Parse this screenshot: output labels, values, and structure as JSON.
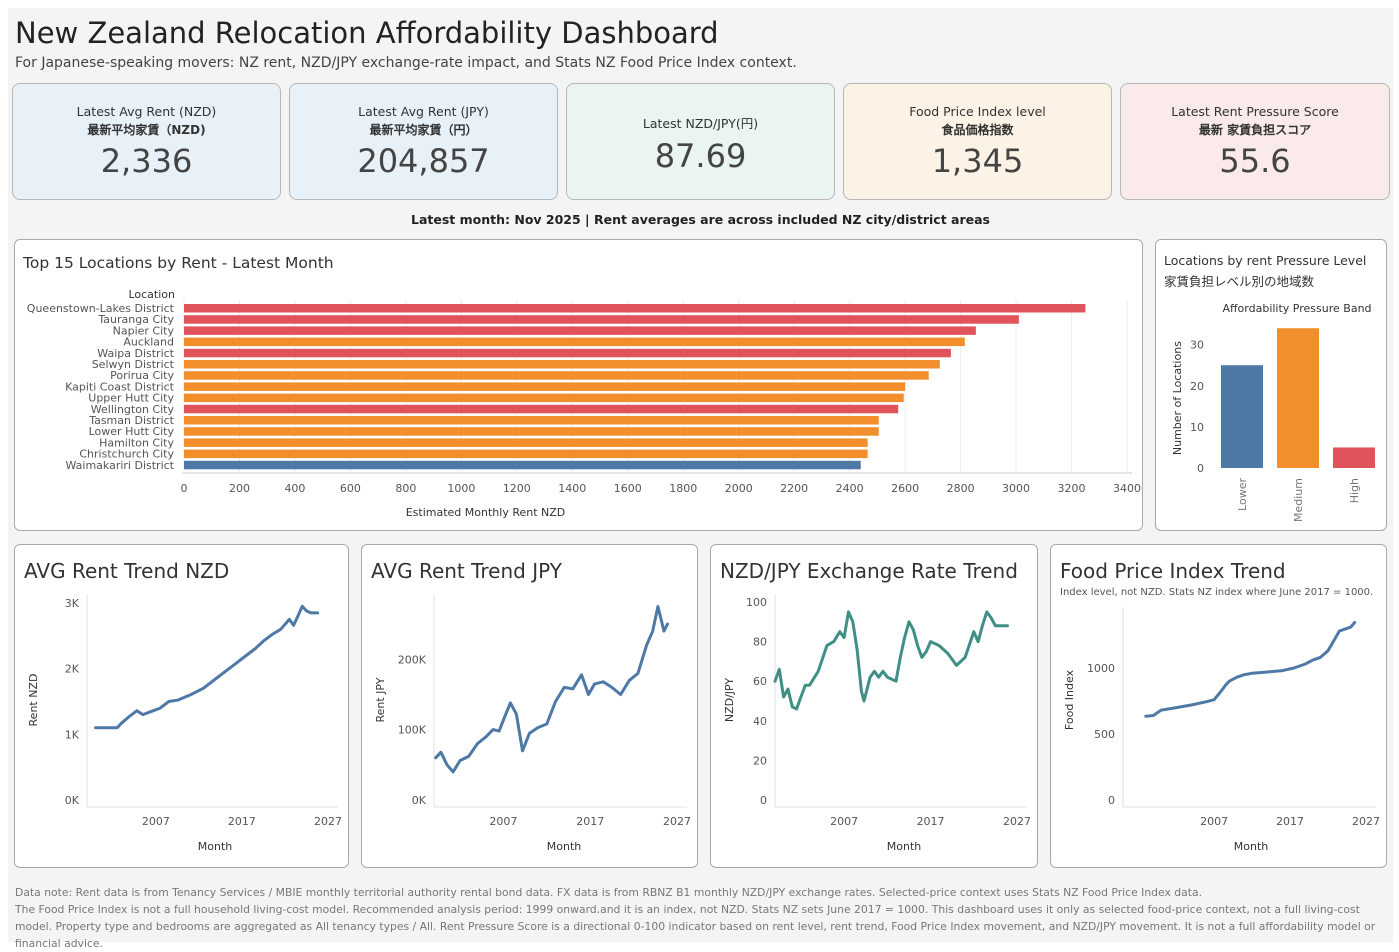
{
  "header": {
    "title": "New Zealand Relocation Affordability Dashboard",
    "subtitle": "For Japanese-speaking movers: NZ rent, NZD/JPY exchange-rate impact, and Stats NZ Food Price Index context."
  },
  "kpis": [
    {
      "label_en": "Latest Avg Rent (NZD)",
      "label_jp": "最新平均家賃（NZD)",
      "value": "2,336",
      "bg": "#e8f0f8"
    },
    {
      "label_en": "Latest Avg Rent (JPY)",
      "label_jp": "最新平均家賃（円）",
      "value": "204,857",
      "bg": "#e8f0f8"
    },
    {
      "label_en": "Latest NZD/JPY(円)",
      "label_jp": "",
      "value": "87.69",
      "bg": "#eaf4f1"
    },
    {
      "label_en": "Food Price Index level",
      "label_jp": "食品価格指数",
      "value": "1,345",
      "bg": "#fdf2e6"
    },
    {
      "label_en": "Latest Rent Pressure Score",
      "label_jp": "最新 家賃負担スコア",
      "value": "55.6",
      "bg": "#fbeaea"
    }
  ],
  "latest_note": "Latest month: Nov 2025 | Rent averages are across included NZ city/district areas",
  "colors": {
    "high": "#e0535a",
    "medium": "#f28e2b",
    "lower": "#4e79a7",
    "teal": "#3f8f87"
  },
  "footnote": {
    "line1": "Data note: Rent data is from Tenancy Services / MBIE monthly territorial authority rental bond data. FX data is from RBNZ B1 monthly NZD/JPY exchange rates. Selected-price context uses Stats NZ Food Price Index data.",
    "line2": "The Food Price Index is not a full household living-cost model. Recommended analysis period: 1999 onward.and it is an index, not NZD. Stats NZ sets June 2017 = 1000. This dashboard uses it only as selected food-price context, not a full living-cost model. Property type and bedrooms are aggregated as All tenancy types / All. Rent Pressure Score is a directional 0-100 indicator based on rent level, rent trend, Food Price Index movement, and NZD/JPY movement. It is not a full affordability model or financial advice."
  },
  "chart_data": [
    {
      "type": "bar",
      "orientation": "horizontal",
      "title": "Top 15 Locations by Rent - Latest Month",
      "ylabel": "Location",
      "xlabel": "Estimated Monthly Rent NZD",
      "xlim": [
        0,
        3400
      ],
      "xticks": [
        0,
        200,
        400,
        600,
        800,
        1000,
        1200,
        1400,
        1600,
        1800,
        2000,
        2200,
        2400,
        2600,
        2800,
        3000,
        3200,
        3400
      ],
      "categories": [
        "Queenstown-Lakes District",
        "Tauranga City",
        "Napier City",
        "Auckland",
        "Waipa District",
        "Selwyn District",
        "Porirua City",
        "Kapiti Coast District",
        "Upper Hutt City",
        "Wellington City",
        "Tasman District",
        "Lower Hutt City",
        "Hamilton City",
        "Christchurch City",
        "Waimakariri District"
      ],
      "values": [
        3250,
        3010,
        2855,
        2815,
        2765,
        2725,
        2685,
        2600,
        2595,
        2575,
        2505,
        2505,
        2465,
        2465,
        2440
      ],
      "bands": [
        "High",
        "High",
        "High",
        "Medium",
        "High",
        "Medium",
        "Medium",
        "Medium",
        "Medium",
        "High",
        "Medium",
        "Medium",
        "Medium",
        "Medium",
        "Lower"
      ],
      "grid": true
    },
    {
      "type": "bar",
      "title": "Locations by rent Pressure Level",
      "title_jp": "家賃負担レベル別の地域数",
      "subtitle": "Affordability Pressure Band",
      "ylabel": "Number of Locations",
      "ylim": [
        0,
        36
      ],
      "yticks": [
        0,
        10,
        20,
        30
      ],
      "categories": [
        "Lower",
        "Medium",
        "High"
      ],
      "values": [
        25,
        34,
        5
      ]
    },
    {
      "type": "line",
      "title": "AVG Rent Trend NZD",
      "xlabel": "Month",
      "ylabel": "Rent NZD",
      "xlim": [
        1999,
        2027
      ],
      "xticks": [
        2007,
        2017,
        2027
      ],
      "ylim": [
        0,
        3000
      ],
      "yticks": [
        0,
        1000,
        2000,
        3000
      ],
      "ytick_labels": [
        "0K",
        "1K",
        "2K",
        "3K"
      ],
      "x": [
        2000.0,
        2002.5,
        2003.0,
        2004.0,
        2004.8,
        2005.5,
        2006.5,
        2007.5,
        2008.5,
        2009.5,
        2011.0,
        2012.5,
        2014.0,
        2015.0,
        2016.0,
        2017.5,
        2018.5,
        2019.5,
        2020.5,
        2021.5,
        2022.5,
        2023.0,
        2023.5,
        2024.0,
        2024.5,
        2025.0,
        2025.8
      ],
      "y": [
        1100,
        1100,
        1170,
        1280,
        1360,
        1300,
        1350,
        1400,
        1500,
        1520,
        1600,
        1700,
        1850,
        1950,
        2050,
        2200,
        2300,
        2420,
        2520,
        2600,
        2750,
        2660,
        2800,
        2950,
        2880,
        2850,
        2850
      ]
    },
    {
      "type": "line",
      "title": "AVG Rent Trend JPY",
      "xlabel": "Month",
      "ylabel": "Rent JPY",
      "xlim": [
        1999,
        2027
      ],
      "xticks": [
        2007,
        2017,
        2027
      ],
      "ylim": [
        0,
        280000
      ],
      "yticks": [
        0,
        100000,
        200000
      ],
      "ytick_labels": [
        "0K",
        "100K",
        "200K"
      ],
      "x": [
        1999.2,
        1999.8,
        2000.5,
        2001.2,
        2002.0,
        2003.0,
        2004.0,
        2005.0,
        2005.8,
        2006.5,
        2007.2,
        2007.8,
        2008.5,
        2009.2,
        2010.0,
        2011.0,
        2012.0,
        2013.0,
        2014.0,
        2015.0,
        2016.0,
        2016.8,
        2017.5,
        2018.5,
        2019.5,
        2020.5,
        2021.5,
        2022.5,
        2023.5,
        2024.2,
        2024.8,
        2025.5,
        2025.9
      ],
      "y": [
        60000,
        68000,
        50000,
        40000,
        56000,
        62000,
        80000,
        90000,
        100000,
        98000,
        120000,
        138000,
        122000,
        70000,
        95000,
        103000,
        108000,
        140000,
        160000,
        158000,
        178000,
        150000,
        165000,
        168000,
        160000,
        150000,
        170000,
        180000,
        220000,
        240000,
        275000,
        240000,
        250000
      ]
    },
    {
      "type": "line",
      "title": "NZD/JPY Exchange Rate Trend",
      "xlabel": "Month",
      "ylabel": "NZD/JPY",
      "xlim": [
        1999,
        2027
      ],
      "xticks": [
        2007,
        2017,
        2027
      ],
      "ylim": [
        0,
        100
      ],
      "yticks": [
        0,
        20,
        40,
        60,
        80,
        100
      ],
      "x": [
        1999.0,
        1999.5,
        2000.0,
        2000.5,
        2001.0,
        2001.5,
        2002.0,
        2002.5,
        2003.0,
        2004.0,
        2005.0,
        2005.8,
        2006.5,
        2007.0,
        2007.5,
        2008.0,
        2008.5,
        2009.0,
        2009.3,
        2010.0,
        2010.5,
        2011.0,
        2011.5,
        2012.0,
        2013.0,
        2013.5,
        2014.0,
        2014.5,
        2015.0,
        2015.5,
        2016.0,
        2016.5,
        2017.0,
        2018.0,
        2019.0,
        2020.0,
        2020.5,
        2021.0,
        2022.0,
        2022.5,
        2023.0,
        2023.5,
        2024.0,
        2024.5,
        2025.0,
        2025.5,
        2025.9
      ],
      "y": [
        60,
        66,
        52,
        56,
        47,
        46,
        52,
        58,
        58,
        65,
        78,
        80,
        85,
        82,
        95,
        90,
        76,
        55,
        50,
        62,
        65,
        62,
        65,
        62,
        60,
        72,
        82,
        90,
        86,
        78,
        72,
        75,
        80,
        78,
        74,
        68,
        70,
        72,
        85,
        80,
        88,
        95,
        92,
        88,
        88,
        88,
        88
      ]
    },
    {
      "type": "line",
      "title": "Food Price Index Trend",
      "subtitle": "Index level, not NZD. Stats NZ index where June 2017 = 1000.",
      "xlabel": "Month",
      "ylabel": "Food Index",
      "xlim": [
        1995,
        2027
      ],
      "xticks": [
        2007,
        2017,
        2027
      ],
      "ylim": [
        0,
        1500
      ],
      "yticks": [
        0,
        500,
        1000
      ],
      "x": [
        1998.0,
        1999.0,
        2000.0,
        2002.0,
        2004.0,
        2006.0,
        2007.0,
        2008.0,
        2008.5,
        2009.0,
        2010.0,
        2011.0,
        2012.0,
        2014.0,
        2016.0,
        2017.5,
        2019.0,
        2020.0,
        2021.0,
        2022.0,
        2023.0,
        2023.5,
        2024.0,
        2025.0,
        2025.5
      ],
      "y": [
        635,
        640,
        680,
        700,
        720,
        745,
        760,
        830,
        870,
        900,
        930,
        950,
        960,
        970,
        980,
        1000,
        1030,
        1060,
        1080,
        1130,
        1230,
        1280,
        1290,
        1310,
        1345
      ]
    }
  ]
}
